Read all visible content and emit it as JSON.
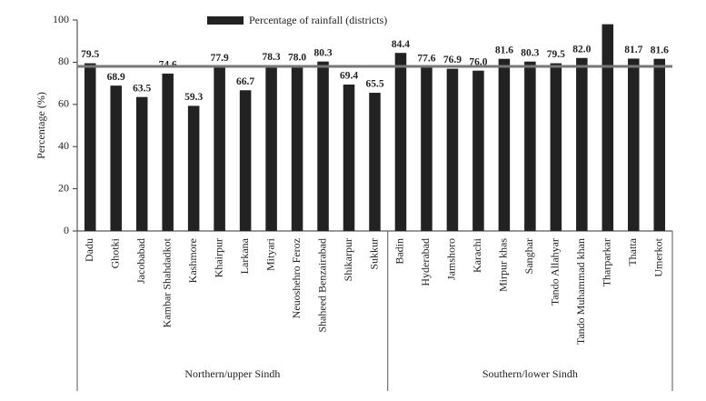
{
  "chart_data": {
    "type": "bar",
    "legend": "Percentage of rainfall (districts)",
    "y_label": "Percentage (%)",
    "categories": [
      "Dadu",
      "Ghotki",
      "Jacobabad",
      "Kambar Shahdadkot",
      "Kashmore",
      "Khairpur",
      "Larkana",
      "Mityari",
      "Neuoshehro Feroz",
      "Shaheed Benzairabad",
      "Shikarpur",
      "Sukkur",
      "Badin",
      "Hyderabad",
      "Jamshoro",
      "Karachi",
      "Mirpur khas",
      "Sanghar",
      "Tando Allahyar",
      "Tando Muhammad khan",
      "Tharparkar",
      "Thatta",
      "Umerkot"
    ],
    "values": [
      79.5,
      68.9,
      63.5,
      74.6,
      59.3,
      77.9,
      66.7,
      78.3,
      78.0,
      80.3,
      69.4,
      65.5,
      84.4,
      77.6,
      76.9,
      76.0,
      81.6,
      80.3,
      79.5,
      82.0,
      98,
      81.7,
      81.6
    ],
    "value_labels": [
      "79.5",
      "68.9",
      "63.5",
      "74.6",
      "59.3",
      "77.9",
      "66.7",
      "78.3",
      "78.0",
      "80.3",
      "69.4",
      "65.5",
      "84.4",
      "77.6",
      "76.9",
      "76.0",
      "81.6",
      "80.3",
      "79.5",
      "82.0",
      null,
      "81.7",
      "81.6"
    ],
    "groups": [
      {
        "label": "Northern/upper Sindh",
        "count": 12
      },
      {
        "label": "Southern/lower Sindh",
        "count": 11
      }
    ],
    "reference_line": 78,
    "color": "#222222",
    "reference_color": "#777777",
    "ylim": [
      0,
      100
    ],
    "yticks": [
      0,
      20,
      40,
      60,
      80,
      100
    ]
  }
}
